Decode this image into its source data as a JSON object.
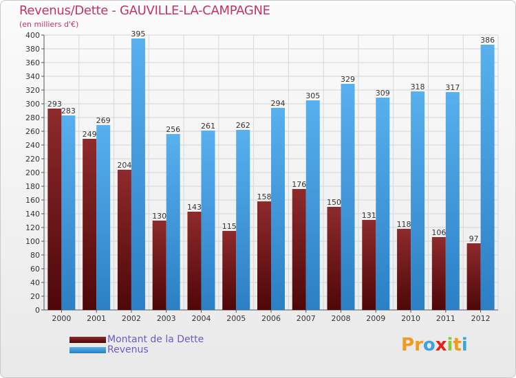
{
  "header": {
    "title": "Revenus/Dette - GAUVILLE-LA-CAMPAGNE",
    "subtitle": "(en milliers d'€)"
  },
  "chart_data": {
    "type": "bar",
    "title": "Revenus/Dette - GAUVILLE-LA-CAMPAGNE",
    "ylabel": "(en milliers d'€)",
    "xlabel": "",
    "categories": [
      "2000",
      "2001",
      "2002",
      "2003",
      "2004",
      "2005",
      "2006",
      "2007",
      "2008",
      "2009",
      "2010",
      "2011",
      "2012"
    ],
    "series": [
      {
        "name": "Montant de la Dette",
        "color": "#7a1a1c",
        "values": [
          293,
          249,
          204,
          130,
          143,
          115,
          158,
          176,
          150,
          131,
          118,
          106,
          97
        ]
      },
      {
        "name": "Revenus",
        "color": "#4aa3e6",
        "values": [
          283,
          269,
          395,
          256,
          261,
          262,
          294,
          305,
          329,
          309,
          318,
          317,
          386
        ]
      }
    ],
    "ylim": [
      0,
      400
    ],
    "yticks": [
      0,
      20,
      40,
      60,
      80,
      100,
      120,
      140,
      160,
      180,
      200,
      220,
      240,
      260,
      280,
      300,
      320,
      340,
      360,
      380,
      400
    ],
    "grid": true,
    "legend_position": "bottom-left"
  },
  "legend": {
    "debt_label": "Montant de la Dette",
    "revenue_label": "Revenus"
  },
  "logo": {
    "letters": [
      "P",
      "r",
      "o",
      "x",
      "i",
      "t",
      "i"
    ],
    "colors": [
      "#f29a1d",
      "#f29a1d",
      "#3aa3e0",
      "#e2231a",
      "#8cc63f",
      "#f29a1d",
      "#3aa3e0"
    ]
  }
}
